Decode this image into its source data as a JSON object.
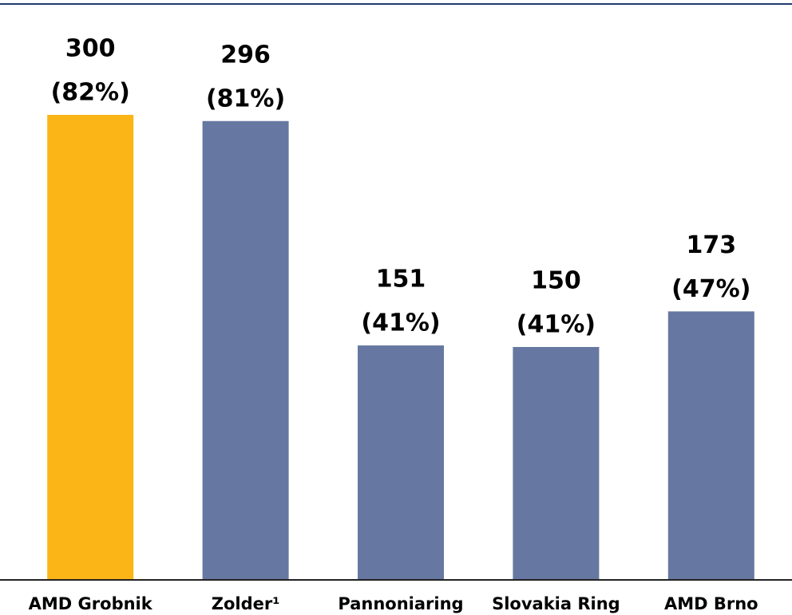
{
  "chart_data": {
    "type": "bar",
    "categories": [
      "AMD Grobnik",
      "Zolder¹",
      "Pannoniaring",
      "Slovakia Ring",
      "AMD Brno"
    ],
    "values": [
      300,
      296,
      151,
      150,
      173
    ],
    "shares": [
      82,
      81,
      41,
      41,
      47
    ],
    "share_labels": [
      "(82%)",
      "(81%)",
      "(41%)",
      "(41%)",
      "(47%)"
    ],
    "colors": [
      "#fbb517",
      "#6678a1",
      "#6678a1",
      "#6678a1",
      "#6678a1"
    ]
  }
}
